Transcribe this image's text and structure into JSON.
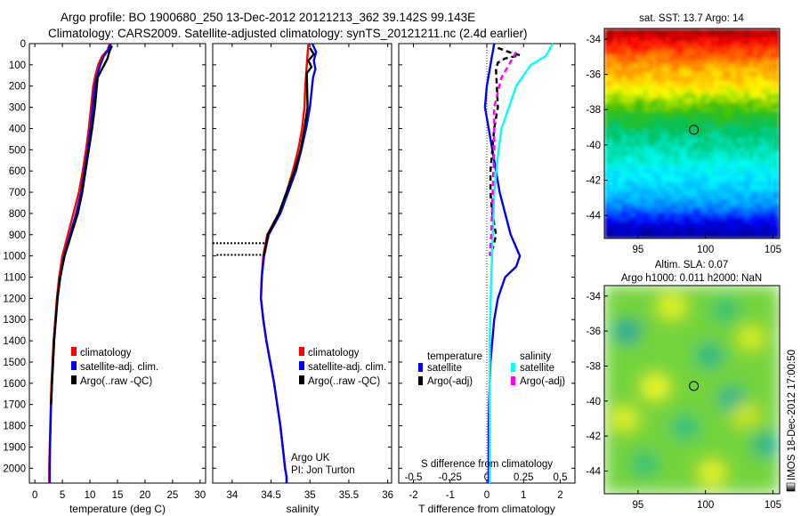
{
  "header": {
    "line1": "Argo profile: BO 1900680_250 13-Dec-2012 20121213_362 39.142S 99.143E",
    "line2": "Climatology: CARS2009. Satellite-adjusted climatology: synTS_20121211.nc (2.4d earlier)"
  },
  "chart_data": [
    {
      "type": "line",
      "panel": "temperature",
      "xlabel": "temperature (deg C)",
      "ylabel": "",
      "xlim": [
        -1,
        31
      ],
      "ylim": [
        2070,
        0
      ],
      "xticks": [
        0,
        5,
        10,
        15,
        20,
        25,
        30
      ],
      "yticks": [
        0,
        100,
        200,
        300,
        400,
        500,
        600,
        700,
        800,
        900,
        1000,
        1100,
        1200,
        1300,
        1400,
        1500,
        1600,
        1700,
        1800,
        1900,
        2000
      ],
      "legend": [
        "climatology",
        "satellite-adj. clim.",
        "Argo(..raw -QC)"
      ],
      "legend_placement": "lower-center",
      "series": [
        {
          "name": "climatology",
          "color": "#ff0000",
          "x": [
            13.6,
            13.2,
            12.2,
            11.5,
            11.0,
            10.6,
            10.2,
            9.8,
            9.3,
            8.7,
            8.0,
            7.0,
            6.0,
            5.0,
            4.4,
            4.0,
            3.7,
            3.4,
            3.2,
            3.0,
            2.9,
            2.8,
            2.7,
            2.6,
            2.6
          ],
          "y": [
            0,
            30,
            60,
            100,
            150,
            200,
            300,
            400,
            500,
            600,
            700,
            800,
            900,
            1000,
            1100,
            1200,
            1300,
            1400,
            1500,
            1600,
            1700,
            1800,
            1900,
            2000,
            2070
          ]
        },
        {
          "name": "satellite-adj. clim.",
          "color": "#0000ff",
          "x": [
            13.8,
            13.3,
            12.5,
            11.9,
            11.3,
            10.9,
            10.5,
            10.1,
            9.6,
            9.0,
            8.4,
            7.5,
            6.4,
            5.3,
            4.6,
            4.1,
            3.8,
            3.5,
            3.3,
            3.1,
            2.95,
            2.85,
            2.75,
            2.7,
            2.7
          ],
          "y": [
            0,
            30,
            60,
            100,
            150,
            200,
            300,
            400,
            500,
            600,
            700,
            800,
            900,
            1000,
            1100,
            1200,
            1300,
            1400,
            1500,
            1600,
            1700,
            1800,
            1900,
            2000,
            2070
          ]
        },
        {
          "name": "Argo(..raw -QC)",
          "color": "#000000",
          "x": [
            14.0,
            13.5,
            13.2,
            12.6,
            12.0,
            11.4,
            10.9,
            10.4,
            9.8,
            9.2,
            8.6,
            7.8,
            6.6,
            5.4,
            4.6,
            4.1,
            3.8,
            3.5,
            3.3,
            3.1,
            2.95
          ],
          "y": [
            10,
            40,
            70,
            100,
            130,
            160,
            300,
            400,
            500,
            600,
            700,
            800,
            900,
            1000,
            1100,
            1200,
            1300,
            1400,
            1500,
            1600,
            1700
          ]
        }
      ]
    },
    {
      "type": "line",
      "panel": "salinity",
      "xlabel": "salinity",
      "xlim": [
        33.75,
        36.05
      ],
      "ylim": [
        2070,
        0
      ],
      "xticks": [
        34,
        34.5,
        35,
        35.5,
        36
      ],
      "xticklabels": [
        "34",
        "34.5",
        "35",
        "35.5",
        "36"
      ],
      "legend": [
        "climatology",
        "satellite-adj. clim.",
        "Argo(..raw -QC)"
      ],
      "legend_placement": "lower-right",
      "annotation": [
        "Argo UK",
        "PI: Jon Turton"
      ],
      "series": [
        {
          "name": "climatology",
          "color": "#ff0000",
          "x": [
            34.98,
            34.97,
            34.96,
            34.95,
            34.94,
            34.93,
            34.9,
            34.85,
            34.78,
            34.7,
            34.6,
            34.45,
            34.4,
            34.38,
            34.37,
            34.4,
            34.44,
            34.49,
            34.54,
            34.58,
            34.62,
            34.65,
            34.68,
            34.7,
            34.7
          ],
          "y": [
            0,
            50,
            100,
            150,
            200,
            300,
            400,
            500,
            600,
            700,
            800,
            900,
            1000,
            1100,
            1200,
            1300,
            1400,
            1500,
            1600,
            1700,
            1800,
            1900,
            2000,
            2040,
            2070
          ]
        },
        {
          "name": "satellite-adj. clim.",
          "color": "#0000ff",
          "x": [
            35.03,
            35.08,
            35.05,
            35.07,
            35.04,
            35.0,
            34.95,
            34.89,
            34.82,
            34.72,
            34.62,
            34.47,
            34.41,
            34.38,
            34.37,
            34.4,
            34.44,
            34.49,
            34.54,
            34.58,
            34.62,
            34.65,
            34.68,
            34.7,
            34.7
          ],
          "y": [
            0,
            40,
            80,
            120,
            160,
            300,
            400,
            500,
            600,
            700,
            800,
            900,
            1000,
            1100,
            1200,
            1300,
            1400,
            1500,
            1600,
            1700,
            1800,
            1900,
            2000,
            2040,
            2070
          ]
        },
        {
          "name": "Argo(..raw -QC)",
          "color": "#000000",
          "x": [
            35.0,
            35.05,
            34.98,
            35.02,
            34.96,
            34.97,
            34.93,
            34.88,
            34.8,
            34.7,
            34.6,
            34.46,
            34.41
          ],
          "y": [
            20,
            50,
            80,
            110,
            140,
            300,
            400,
            500,
            600,
            700,
            800,
            900,
            1000
          ]
        }
      ],
      "qc_marks": [
        {
          "x0": 33.75,
          "x1": 34.44,
          "y": 940
        },
        {
          "x0": 33.8,
          "x1": 34.44,
          "y": 995
        }
      ]
    },
    {
      "type": "line",
      "panel": "difference",
      "xlabel": "T difference from climatology",
      "xlabel_top": "S difference from climatology",
      "xlim": [
        -2.4,
        2.4
      ],
      "ylim": [
        2070,
        0
      ],
      "xticks": [
        -2,
        -1,
        0,
        1,
        2
      ],
      "s_xticks": [
        -0.5,
        -0.25,
        0,
        0.25,
        0.5
      ],
      "s_xticklabels": [
        "-0.5",
        "-0.25",
        "0",
        "0.25",
        "0.5"
      ],
      "s_scale": 4,
      "legend": {
        "temperature_title": "temperature",
        "salinity_title": "salinity",
        "items": [
          "satellite",
          "Argo(-adj)",
          "satellite",
          "Argo(-adj)"
        ]
      },
      "legend_placement": "lower-center",
      "series": [
        {
          "name": "temperature satellite",
          "color": "#0000ff",
          "x": [
            0.2,
            0.15,
            0.1,
            0.05,
            0.0,
            -0.05,
            0.05,
            0.15,
            0.25,
            0.35,
            0.5,
            0.65,
            0.8,
            0.9,
            0.8,
            0.5,
            0.3,
            0.2,
            0.15,
            0.1,
            0.08,
            0.06,
            0.05,
            0.05,
            0.05
          ],
          "y": [
            0,
            50,
            100,
            150,
            200,
            300,
            400,
            500,
            600,
            700,
            800,
            900,
            960,
            1000,
            1050,
            1100,
            1200,
            1300,
            1400,
            1500,
            1600,
            1700,
            1800,
            1900,
            2070
          ]
        },
        {
          "name": "temperature Argo(-adj)",
          "color": "#000000",
          "dash": true,
          "x": [
            0.3,
            0.6,
            0.9,
            0.5,
            0.3,
            0.25,
            0.3,
            0.2,
            0.15,
            0.1,
            0.1,
            0.15,
            0.25,
            0.2,
            0.1
          ],
          "y": [
            20,
            40,
            55,
            70,
            90,
            120,
            300,
            400,
            500,
            600,
            700,
            800,
            900,
            940,
            1000
          ]
        },
        {
          "name": "salinity satellite",
          "color": "#00ffff",
          "x": [
            0.45,
            0.4,
            0.3,
            0.25,
            0.2,
            0.15,
            0.1,
            0.08,
            0.05,
            0.04,
            0.03,
            0.02,
            0.02,
            0.02
          ],
          "y": [
            0,
            60,
            100,
            150,
            200,
            300,
            400,
            500,
            700,
            900,
            1100,
            1400,
            1800,
            2070
          ]
        },
        {
          "name": "salinity Argo(-adj)",
          "color": "#ff00ff",
          "dash": true,
          "x": [
            0.2,
            0.15,
            0.1,
            0.05,
            0.05,
            0.04,
            0.03,
            0.02
          ],
          "y": [
            40,
            100,
            160,
            300,
            500,
            700,
            900,
            1000
          ]
        }
      ]
    },
    {
      "type": "heatmap",
      "panel": "sat-sst",
      "title": "sat. SST: 13.7 Argo: 14",
      "xlim": [
        92.5,
        105.5
      ],
      "ylim": [
        -45.3,
        -33.4
      ],
      "xticks": [
        95,
        100,
        105
      ],
      "yticks": [
        -34,
        -36,
        -38,
        -40,
        -42,
        -44
      ],
      "colormap": [
        "#000080",
        "#0000ff",
        "#00a0ff",
        "#00ffff",
        "#00c060",
        "#40c000",
        "#ffff00",
        "#ff8000",
        "#ff0000",
        "#800000"
      ],
      "value_by_latitude": {
        "lat": [
          -33.4,
          -34.5,
          -35.5,
          -36.5,
          -37.5,
          -38.5,
          -39.5,
          -40.5,
          -41.5,
          -42.5,
          -43.5,
          -44.5,
          -45.3
        ],
        "level": [
          0.98,
          0.85,
          0.75,
          0.7,
          0.6,
          0.5,
          0.42,
          0.38,
          0.32,
          0.28,
          0.2,
          0.08,
          0.02
        ]
      },
      "marker": {
        "lon": 99.14,
        "lat": -39.14
      }
    },
    {
      "type": "heatmap",
      "panel": "altim-sla",
      "title": [
        "Altim. SLA: 0.07",
        "Argo h1000: 0.011 h2000: NaN"
      ],
      "xlim": [
        92.5,
        105.5
      ],
      "ylim": [
        -45.3,
        -33.4
      ],
      "xticks": [
        95,
        100,
        105
      ],
      "yticks": [
        -34,
        -36,
        -38,
        -40,
        -42,
        -44
      ],
      "colormap": [
        "#00a0a0",
        "#20c080",
        "#60d040",
        "#c0e020",
        "#ffff20"
      ],
      "base_level": 0.55,
      "blobs": [
        {
          "lon": 94.2,
          "lat": -36.0,
          "level": 0.05
        },
        {
          "lon": 100.3,
          "lat": -37.4,
          "level": 0.18
        },
        {
          "lon": 102.0,
          "lat": -39.9,
          "level": 0.12
        },
        {
          "lon": 98.5,
          "lat": -41.5,
          "level": 0.25
        },
        {
          "lon": 104.5,
          "lat": -42.5,
          "level": 0.15
        },
        {
          "lon": 95.5,
          "lat": -43.6,
          "level": 0.28
        },
        {
          "lon": 101.5,
          "lat": -34.8,
          "level": 0.3
        },
        {
          "lon": 96.3,
          "lat": -39.2,
          "level": 0.95
        },
        {
          "lon": 97.5,
          "lat": -34.6,
          "level": 0.9
        },
        {
          "lon": 103.4,
          "lat": -36.4,
          "level": 0.85
        },
        {
          "lon": 100.5,
          "lat": -44.1,
          "level": 0.9
        },
        {
          "lon": 94.0,
          "lat": -41.0,
          "level": 0.88
        },
        {
          "lon": 103.0,
          "lat": -40.8,
          "level": 0.8
        }
      ],
      "marker": {
        "lon": 99.14,
        "lat": -39.14
      }
    }
  ],
  "footer_stamp": "IMOS 18-Dec-2012 17:00:50"
}
